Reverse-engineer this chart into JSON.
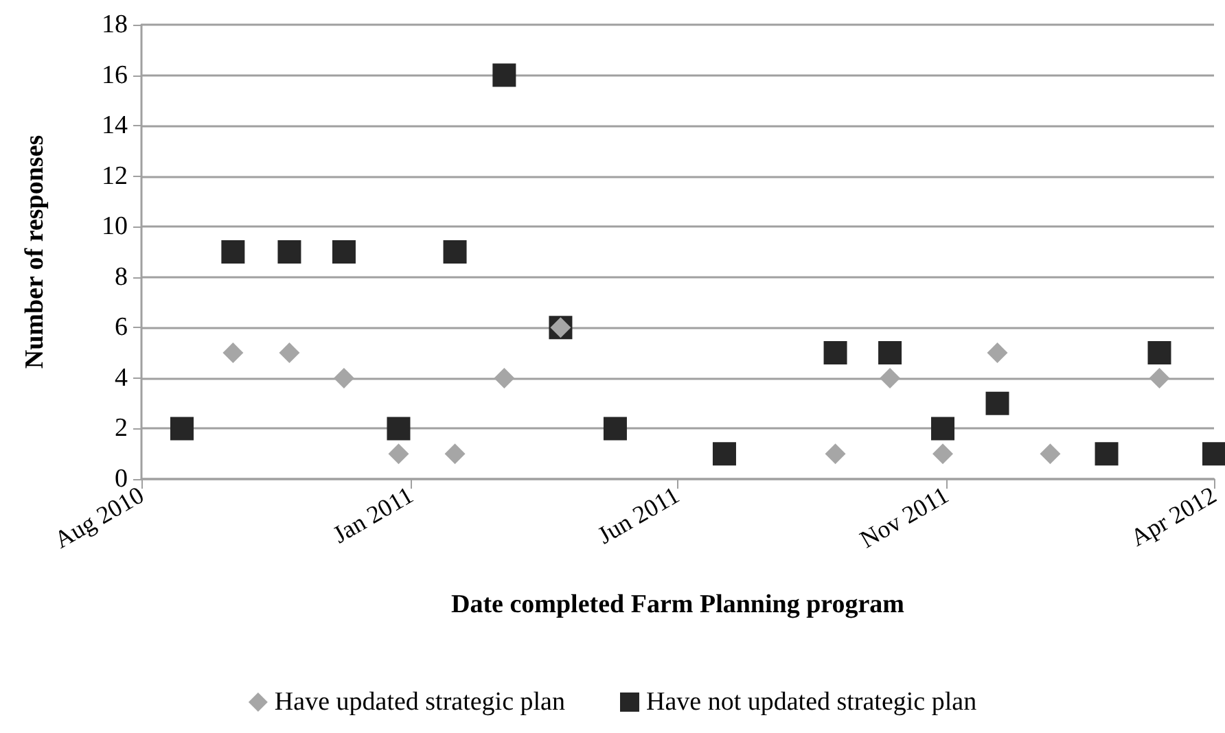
{
  "chart_data": {
    "type": "scatter",
    "xlabel": "Date completed Farm Planning program",
    "ylabel": "Number of responses",
    "series": [
      {
        "name": "Have updated strategic plan",
        "color": "#a6a6a6",
        "marker": "diamond",
        "x": [
          "2010-09-22",
          "2010-10-24",
          "2010-11-24",
          "2010-12-25",
          "2011-01-26",
          "2011-02-23",
          "2011-03-27",
          "2011-08-30",
          "2011-09-30",
          "2011-10-30",
          "2011-11-30",
          "2011-12-30",
          "2012-03-01"
        ],
        "values": [
          5,
          5,
          4,
          1,
          1,
          4,
          6,
          1,
          4,
          1,
          5,
          1,
          4
        ]
      },
      {
        "name": "Have not updated strategic plan",
        "color": "#262626",
        "marker": "square",
        "x": [
          "2010-08-24",
          "2010-09-22",
          "2010-10-24",
          "2010-11-24",
          "2010-12-25",
          "2011-01-26",
          "2011-02-23",
          "2011-03-27",
          "2011-04-27",
          "2011-06-28",
          "2011-08-30",
          "2011-09-30",
          "2011-10-30",
          "2011-11-30",
          "2012-01-31",
          "2012-03-01",
          "2012-04-01"
        ],
        "values": [
          2,
          9,
          9,
          9,
          2,
          9,
          16,
          6,
          2,
          1,
          5,
          5,
          2,
          3,
          1,
          5,
          1
        ]
      }
    ],
    "xlim": [
      "2010-08-01",
      "2012-04-01"
    ],
    "xticks": [
      {
        "value": "2010-08-01",
        "label": "Aug 2010"
      },
      {
        "value": "2011-01-01",
        "label": "Jan 2011"
      },
      {
        "value": "2011-06-01",
        "label": "Jun 2011"
      },
      {
        "value": "2011-11-01",
        "label": "Nov 2011"
      },
      {
        "value": "2012-04-01",
        "label": "Apr 2012"
      }
    ],
    "ylim": [
      0,
      18
    ],
    "yticks": [
      0,
      2,
      4,
      6,
      8,
      10,
      12,
      14,
      16,
      18
    ],
    "grid": "y",
    "legend": "bottom"
  }
}
